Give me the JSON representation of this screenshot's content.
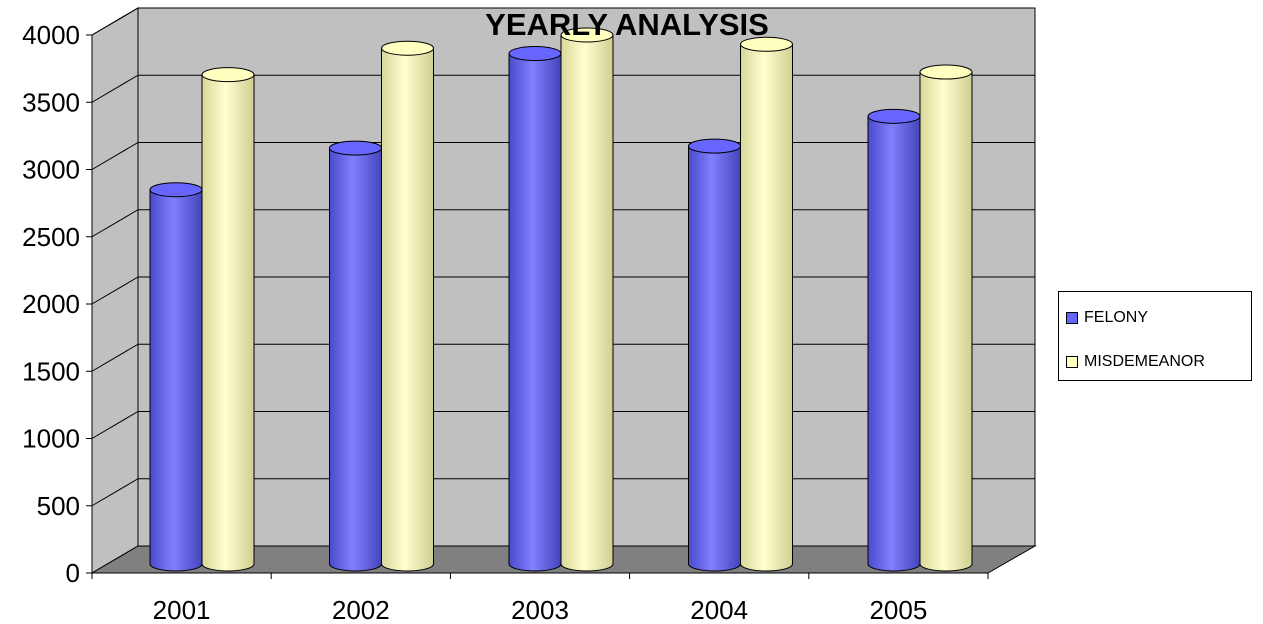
{
  "chart_data": {
    "type": "bar",
    "title": "YEARLY ANALYSIS",
    "categories": [
      "2001",
      "2002",
      "2003",
      "2004",
      "2005"
    ],
    "series": [
      {
        "name": "FELONY",
        "values": [
          2830,
          3145,
          3860,
          3160,
          3385
        ],
        "color": "#6666ff"
      },
      {
        "name": "MISDEMEANOR",
        "values": [
          3700,
          3900,
          4000,
          3930,
          3720
        ],
        "color": "#ffffc0"
      }
    ],
    "ylim": [
      0,
      4000
    ],
    "yticks": [
      0,
      500,
      1000,
      1500,
      2000,
      2500,
      3000,
      3500,
      4000
    ],
    "grid": true,
    "legend_position": "right",
    "style": "3d-cylinder",
    "wall_color": "#c0c0c0",
    "floor_color": "#808080"
  }
}
